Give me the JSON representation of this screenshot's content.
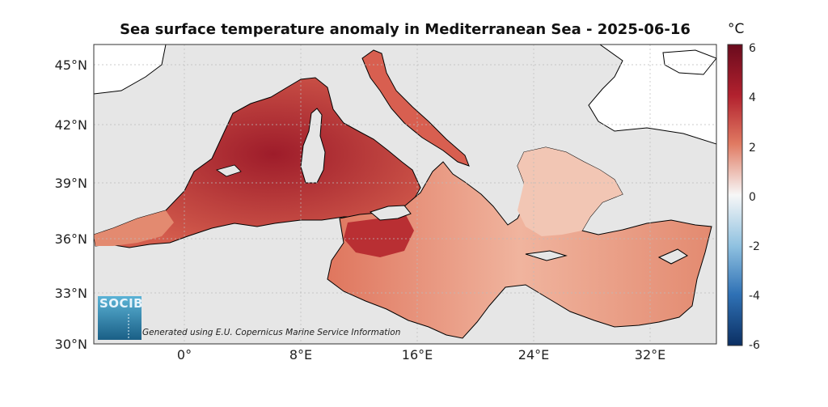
{
  "title": "Sea surface temperature anomaly in Mediterranean Sea - 2025-06-16",
  "colorbar": {
    "unit": "°C",
    "ticks": [
      "6",
      "4",
      "2",
      "0",
      "-2",
      "-4",
      "-6"
    ],
    "range": [
      -6,
      6
    ],
    "colors": [
      "#0b2f63",
      "#2c6db1",
      "#8cbfe0",
      "#f5f5f5",
      "#f0a38a",
      "#c83a35",
      "#6a0b1d"
    ]
  },
  "axes": {
    "lat_labels": [
      "45°N",
      "42°N",
      "39°N",
      "36°N",
      "33°N",
      "30°N"
    ],
    "lon_labels": [
      "0°",
      "8°E",
      "16°E",
      "24°E",
      "32°E"
    ]
  },
  "logo_text": "SOCIB",
  "credit": "Generated using E.U. Copernicus Marine Service Information",
  "colors": {
    "land": "#e6e6e6",
    "ocean_mask": "#ffffff",
    "coast": "#000000"
  }
}
